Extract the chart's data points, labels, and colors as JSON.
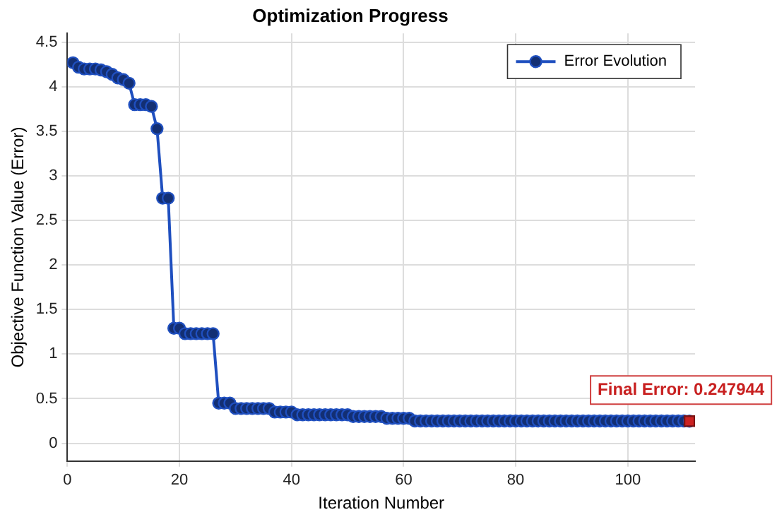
{
  "chart_data": {
    "type": "line",
    "title": "Optimization Progress",
    "xlabel": "Iteration Number",
    "ylabel": "Objective Function Value (Error)",
    "xlim": [
      0,
      112
    ],
    "xticks": [
      0,
      20,
      40,
      60,
      80,
      100
    ],
    "ylim": [
      -0.2,
      4.6
    ],
    "yticks": [
      0,
      0.5,
      1,
      1.5,
      2,
      2.5,
      3,
      3.5,
      4,
      4.5
    ],
    "grid": true,
    "legend": "top right",
    "marker": "circle",
    "line_style": "solid",
    "series": [
      {
        "name": "Error Evolution",
        "color": "#1f4fbf",
        "x": [
          1,
          2,
          3,
          4,
          5,
          6,
          7,
          8,
          9,
          10,
          11,
          12,
          13,
          14,
          15,
          16,
          17,
          18,
          19,
          20,
          21,
          22,
          23,
          24,
          25,
          26,
          27,
          28,
          29,
          30,
          31,
          32,
          33,
          34,
          35,
          36,
          37,
          38,
          39,
          40,
          41,
          42,
          43,
          44,
          45,
          46,
          47,
          48,
          49,
          50,
          51,
          52,
          53,
          54,
          55,
          56,
          57,
          58,
          59,
          60,
          61,
          62,
          63,
          64,
          65,
          66,
          67,
          68,
          69,
          70,
          71,
          72,
          73,
          74,
          75,
          76,
          77,
          78,
          79,
          80,
          81,
          82,
          83,
          84,
          85,
          86,
          87,
          88,
          89,
          90,
          91,
          92,
          93,
          94,
          95,
          96,
          97,
          98,
          99,
          100,
          101,
          102,
          103,
          104,
          105,
          106,
          107,
          108,
          109,
          110,
          111
        ],
        "values": [
          4.27,
          4.22,
          4.2,
          4.2,
          4.2,
          4.19,
          4.17,
          4.14,
          4.1,
          4.08,
          4.04,
          3.8,
          3.8,
          3.8,
          3.78,
          3.53,
          2.75,
          2.75,
          1.29,
          1.29,
          1.23,
          1.23,
          1.23,
          1.23,
          1.23,
          1.23,
          0.45,
          0.45,
          0.45,
          0.39,
          0.39,
          0.39,
          0.39,
          0.39,
          0.39,
          0.39,
          0.35,
          0.35,
          0.35,
          0.35,
          0.32,
          0.32,
          0.32,
          0.32,
          0.32,
          0.32,
          0.32,
          0.32,
          0.32,
          0.32,
          0.3,
          0.3,
          0.3,
          0.3,
          0.3,
          0.3,
          0.28,
          0.28,
          0.28,
          0.28,
          0.28,
          0.25,
          0.25,
          0.25,
          0.25,
          0.25,
          0.25,
          0.25,
          0.25,
          0.25,
          0.25,
          0.25,
          0.25,
          0.25,
          0.25,
          0.25,
          0.25,
          0.25,
          0.25,
          0.25,
          0.25,
          0.25,
          0.25,
          0.25,
          0.25,
          0.25,
          0.25,
          0.25,
          0.25,
          0.25,
          0.25,
          0.25,
          0.25,
          0.25,
          0.25,
          0.25,
          0.25,
          0.25,
          0.25,
          0.25,
          0.25,
          0.25,
          0.25,
          0.25,
          0.25,
          0.25,
          0.25,
          0.25,
          0.25,
          0.25,
          0.247944
        ]
      },
      {
        "type": "scatter",
        "marker": "square",
        "color": "#cc2222",
        "x": [
          111
        ],
        "values": [
          0.247944
        ]
      }
    ],
    "annotations": [
      {
        "text": "Final Error: 0.247944",
        "x": 111,
        "y": 0.247944
      }
    ]
  }
}
